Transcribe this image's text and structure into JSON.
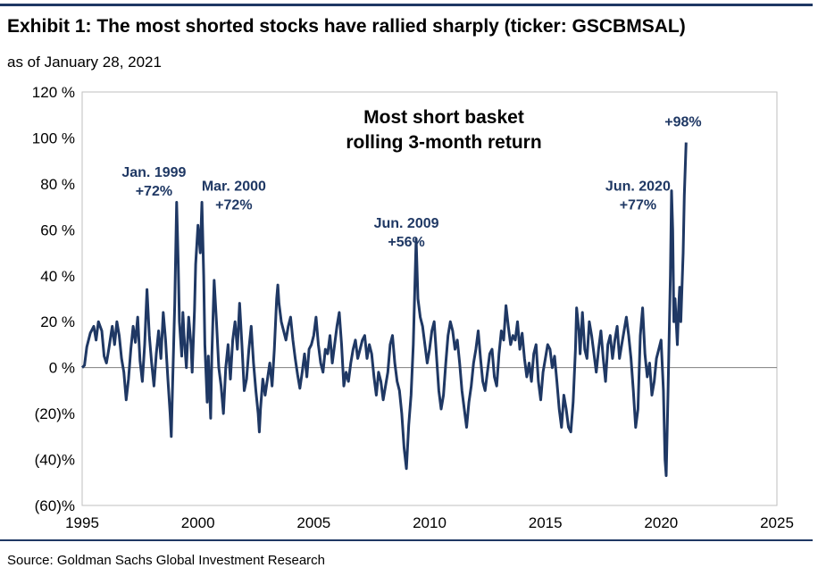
{
  "header": {
    "title": "Exhibit 1: The most shorted stocks have rallied sharply (ticker: GSCBMSAL)",
    "subtitle": "as of January 28, 2021"
  },
  "footer": {
    "source": "Source: Goldman Sachs Global Investment Research"
  },
  "chart_data": {
    "type": "line",
    "title": "Most short basket rolling 3-month return",
    "title_lines": [
      "Most short basket",
      "rolling 3-month return"
    ],
    "xlabel": "",
    "ylabel": "",
    "xlim": [
      1995,
      2025
    ],
    "ylim": [
      -60,
      120
    ],
    "x_ticks": [
      1995,
      2000,
      2005,
      2010,
      2015,
      2020,
      2025
    ],
    "x_tick_labels": [
      "1995",
      "2000",
      "2005",
      "2010",
      "2015",
      "2020",
      "2025"
    ],
    "y_ticks": [
      -60,
      -40,
      -20,
      0,
      20,
      40,
      60,
      80,
      100,
      120
    ],
    "y_tick_labels": [
      "(60)%",
      "(40)%",
      "(20)%",
      "0 %",
      "20 %",
      "40 %",
      "60 %",
      "80 %",
      "100 %",
      "120 %"
    ],
    "grid": false,
    "line_color": "#1f3864",
    "series": [
      {
        "name": "",
        "points": [
          [
            1995.0,
            0
          ],
          [
            1995.1,
            1
          ],
          [
            1995.2,
            9
          ],
          [
            1995.35,
            15
          ],
          [
            1995.5,
            18
          ],
          [
            1995.6,
            12
          ],
          [
            1995.7,
            20
          ],
          [
            1995.85,
            16
          ],
          [
            1995.95,
            5
          ],
          [
            1996.05,
            2
          ],
          [
            1996.15,
            8
          ],
          [
            1996.3,
            18
          ],
          [
            1996.4,
            10
          ],
          [
            1996.5,
            20
          ],
          [
            1996.6,
            14
          ],
          [
            1996.7,
            4
          ],
          [
            1996.8,
            -2
          ],
          [
            1996.9,
            -14
          ],
          [
            1997.0,
            -5
          ],
          [
            1997.1,
            8
          ],
          [
            1997.2,
            18
          ],
          [
            1997.3,
            11
          ],
          [
            1997.4,
            22
          ],
          [
            1997.5,
            3
          ],
          [
            1997.6,
            -6
          ],
          [
            1997.7,
            10
          ],
          [
            1997.8,
            34
          ],
          [
            1997.9,
            14
          ],
          [
            1998.0,
            2
          ],
          [
            1998.1,
            -8
          ],
          [
            1998.2,
            6
          ],
          [
            1998.3,
            16
          ],
          [
            1998.4,
            4
          ],
          [
            1998.5,
            24
          ],
          [
            1998.6,
            12
          ],
          [
            1998.7,
            -5
          ],
          [
            1998.8,
            -20
          ],
          [
            1998.85,
            -30
          ],
          [
            1998.9,
            -10
          ],
          [
            1999.0,
            28
          ],
          [
            1999.08,
            72
          ],
          [
            1999.15,
            45
          ],
          [
            1999.2,
            20
          ],
          [
            1999.3,
            5
          ],
          [
            1999.35,
            24
          ],
          [
            1999.4,
            14
          ],
          [
            1999.5,
            0
          ],
          [
            1999.6,
            22
          ],
          [
            1999.7,
            10
          ],
          [
            1999.75,
            -2
          ],
          [
            1999.85,
            25
          ],
          [
            1999.9,
            45
          ],
          [
            2000.0,
            62
          ],
          [
            2000.1,
            50
          ],
          [
            2000.17,
            72
          ],
          [
            2000.25,
            40
          ],
          [
            2000.3,
            10
          ],
          [
            2000.4,
            -15
          ],
          [
            2000.45,
            5
          ],
          [
            2000.55,
            -22
          ],
          [
            2000.6,
            5
          ],
          [
            2000.7,
            38
          ],
          [
            2000.8,
            20
          ],
          [
            2000.9,
            0
          ],
          [
            2001.0,
            -8
          ],
          [
            2001.1,
            -20
          ],
          [
            2001.2,
            0
          ],
          [
            2001.3,
            10
          ],
          [
            2001.4,
            -5
          ],
          [
            2001.5,
            12
          ],
          [
            2001.6,
            20
          ],
          [
            2001.7,
            8
          ],
          [
            2001.8,
            28
          ],
          [
            2001.9,
            10
          ],
          [
            2002.0,
            -10
          ],
          [
            2002.1,
            -5
          ],
          [
            2002.2,
            8
          ],
          [
            2002.3,
            18
          ],
          [
            2002.4,
            2
          ],
          [
            2002.5,
            -10
          ],
          [
            2002.6,
            -20
          ],
          [
            2002.65,
            -28
          ],
          [
            2002.7,
            -18
          ],
          [
            2002.8,
            -5
          ],
          [
            2002.9,
            -12
          ],
          [
            2003.0,
            -5
          ],
          [
            2003.1,
            2
          ],
          [
            2003.2,
            -8
          ],
          [
            2003.3,
            8
          ],
          [
            2003.4,
            30
          ],
          [
            2003.45,
            36
          ],
          [
            2003.5,
            28
          ],
          [
            2003.6,
            20
          ],
          [
            2003.7,
            16
          ],
          [
            2003.8,
            12
          ],
          [
            2003.9,
            18
          ],
          [
            2004.0,
            22
          ],
          [
            2004.1,
            12
          ],
          [
            2004.2,
            4
          ],
          [
            2004.3,
            -3
          ],
          [
            2004.4,
            -9
          ],
          [
            2004.5,
            -2
          ],
          [
            2004.6,
            6
          ],
          [
            2004.7,
            -4
          ],
          [
            2004.8,
            8
          ],
          [
            2004.9,
            10
          ],
          [
            2005.0,
            14
          ],
          [
            2005.1,
            22
          ],
          [
            2005.2,
            10
          ],
          [
            2005.3,
            2
          ],
          [
            2005.4,
            -2
          ],
          [
            2005.5,
            8
          ],
          [
            2005.6,
            6
          ],
          [
            2005.7,
            14
          ],
          [
            2005.8,
            2
          ],
          [
            2005.9,
            10
          ],
          [
            2006.0,
            18
          ],
          [
            2006.1,
            24
          ],
          [
            2006.2,
            10
          ],
          [
            2006.3,
            -8
          ],
          [
            2006.4,
            -2
          ],
          [
            2006.5,
            -6
          ],
          [
            2006.6,
            2
          ],
          [
            2006.7,
            8
          ],
          [
            2006.8,
            12
          ],
          [
            2006.9,
            4
          ],
          [
            2007.0,
            8
          ],
          [
            2007.1,
            12
          ],
          [
            2007.2,
            14
          ],
          [
            2007.3,
            4
          ],
          [
            2007.4,
            10
          ],
          [
            2007.5,
            6
          ],
          [
            2007.6,
            -4
          ],
          [
            2007.7,
            -12
          ],
          [
            2007.8,
            -2
          ],
          [
            2007.9,
            -6
          ],
          [
            2008.0,
            -14
          ],
          [
            2008.1,
            -8
          ],
          [
            2008.2,
            -2
          ],
          [
            2008.3,
            10
          ],
          [
            2008.4,
            14
          ],
          [
            2008.5,
            2
          ],
          [
            2008.6,
            -6
          ],
          [
            2008.7,
            -10
          ],
          [
            2008.8,
            -20
          ],
          [
            2008.9,
            -35
          ],
          [
            2009.0,
            -44
          ],
          [
            2009.1,
            -25
          ],
          [
            2009.2,
            -12
          ],
          [
            2009.3,
            10
          ],
          [
            2009.42,
            56
          ],
          [
            2009.5,
            30
          ],
          [
            2009.6,
            22
          ],
          [
            2009.7,
            18
          ],
          [
            2009.8,
            10
          ],
          [
            2009.9,
            2
          ],
          [
            2010.0,
            8
          ],
          [
            2010.1,
            16
          ],
          [
            2010.2,
            20
          ],
          [
            2010.3,
            5
          ],
          [
            2010.4,
            -10
          ],
          [
            2010.5,
            -18
          ],
          [
            2010.6,
            -12
          ],
          [
            2010.7,
            2
          ],
          [
            2010.8,
            14
          ],
          [
            2010.9,
            20
          ],
          [
            2011.0,
            16
          ],
          [
            2011.1,
            8
          ],
          [
            2011.2,
            12
          ],
          [
            2011.3,
            2
          ],
          [
            2011.4,
            -10
          ],
          [
            2011.5,
            -18
          ],
          [
            2011.6,
            -26
          ],
          [
            2011.7,
            -15
          ],
          [
            2011.8,
            -8
          ],
          [
            2011.9,
            2
          ],
          [
            2012.0,
            8
          ],
          [
            2012.1,
            16
          ],
          [
            2012.2,
            4
          ],
          [
            2012.3,
            -6
          ],
          [
            2012.4,
            -10
          ],
          [
            2012.5,
            -2
          ],
          [
            2012.6,
            6
          ],
          [
            2012.7,
            8
          ],
          [
            2012.8,
            -4
          ],
          [
            2012.9,
            -8
          ],
          [
            2013.0,
            6
          ],
          [
            2013.1,
            16
          ],
          [
            2013.2,
            12
          ],
          [
            2013.3,
            27
          ],
          [
            2013.4,
            18
          ],
          [
            2013.5,
            10
          ],
          [
            2013.6,
            14
          ],
          [
            2013.7,
            12
          ],
          [
            2013.8,
            20
          ],
          [
            2013.9,
            8
          ],
          [
            2014.0,
            15
          ],
          [
            2014.1,
            4
          ],
          [
            2014.2,
            -4
          ],
          [
            2014.3,
            2
          ],
          [
            2014.4,
            -6
          ],
          [
            2014.5,
            6
          ],
          [
            2014.6,
            10
          ],
          [
            2014.7,
            -6
          ],
          [
            2014.8,
            -14
          ],
          [
            2014.9,
            -2
          ],
          [
            2015.0,
            4
          ],
          [
            2015.1,
            10
          ],
          [
            2015.2,
            8
          ],
          [
            2015.3,
            0
          ],
          [
            2015.4,
            5
          ],
          [
            2015.5,
            -6
          ],
          [
            2015.6,
            -18
          ],
          [
            2015.7,
            -26
          ],
          [
            2015.8,
            -12
          ],
          [
            2015.9,
            -18
          ],
          [
            2016.0,
            -26
          ],
          [
            2016.1,
            -28
          ],
          [
            2016.2,
            -15
          ],
          [
            2016.3,
            8
          ],
          [
            2016.35,
            26
          ],
          [
            2016.45,
            16
          ],
          [
            2016.5,
            6
          ],
          [
            2016.6,
            24
          ],
          [
            2016.7,
            8
          ],
          [
            2016.8,
            4
          ],
          [
            2016.9,
            20
          ],
          [
            2017.0,
            14
          ],
          [
            2017.1,
            6
          ],
          [
            2017.2,
            -2
          ],
          [
            2017.3,
            8
          ],
          [
            2017.4,
            16
          ],
          [
            2017.5,
            4
          ],
          [
            2017.6,
            -6
          ],
          [
            2017.7,
            10
          ],
          [
            2017.8,
            14
          ],
          [
            2017.9,
            4
          ],
          [
            2018.0,
            12
          ],
          [
            2018.1,
            18
          ],
          [
            2018.2,
            4
          ],
          [
            2018.3,
            10
          ],
          [
            2018.4,
            16
          ],
          [
            2018.5,
            22
          ],
          [
            2018.6,
            14
          ],
          [
            2018.7,
            4
          ],
          [
            2018.8,
            -10
          ],
          [
            2018.9,
            -26
          ],
          [
            2019.0,
            -18
          ],
          [
            2019.1,
            14
          ],
          [
            2019.2,
            26
          ],
          [
            2019.3,
            6
          ],
          [
            2019.4,
            -4
          ],
          [
            2019.5,
            2
          ],
          [
            2019.6,
            -12
          ],
          [
            2019.7,
            -6
          ],
          [
            2019.8,
            4
          ],
          [
            2019.9,
            8
          ],
          [
            2020.0,
            12
          ],
          [
            2020.1,
            -10
          ],
          [
            2020.17,
            -40
          ],
          [
            2020.22,
            -47
          ],
          [
            2020.3,
            -10
          ],
          [
            2020.4,
            40
          ],
          [
            2020.45,
            77
          ],
          [
            2020.5,
            60
          ],
          [
            2020.55,
            20
          ],
          [
            2020.6,
            30
          ],
          [
            2020.7,
            10
          ],
          [
            2020.75,
            25
          ],
          [
            2020.8,
            35
          ],
          [
            2020.85,
            20
          ],
          [
            2020.9,
            35
          ],
          [
            2020.95,
            50
          ],
          [
            2021.0,
            75
          ],
          [
            2021.08,
            98
          ]
        ]
      }
    ],
    "annotations": [
      {
        "line1": "Jan. 1999",
        "line2": "+72%",
        "x": 1998.1,
        "y": 83
      },
      {
        "line1": "Mar. 2000",
        "line2": "+72%",
        "x": 2001.55,
        "y": 77
      },
      {
        "line1": "Jun. 2009",
        "line2": "+56%",
        "x": 2009.0,
        "y": 61
      },
      {
        "line1": "Jun. 2020",
        "line2": "+77%",
        "x": 2019.0,
        "y": 77
      },
      {
        "line1": "+98%",
        "line2": "",
        "x": 2020.95,
        "y": 105
      }
    ]
  }
}
